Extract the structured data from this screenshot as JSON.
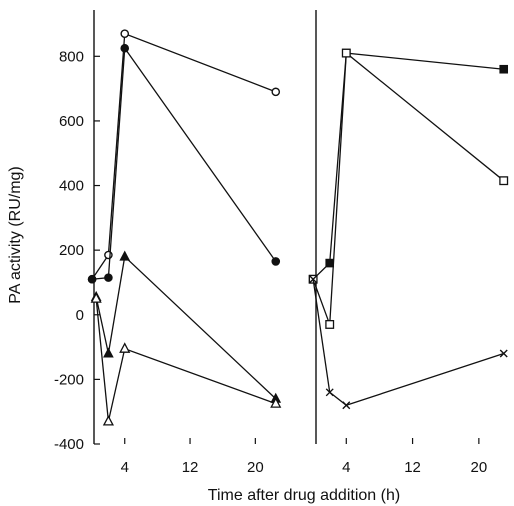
{
  "chart_data": [
    {
      "type": "line",
      "panel": "left",
      "xlabel": "Time after drug addition (h)",
      "ylabel": "PA activity (RU/mg)",
      "xlim": [
        -0.5,
        24
      ],
      "ylim": [
        -400,
        900
      ],
      "xticks": [
        4,
        12,
        20
      ],
      "yticks": [
        -400,
        -200,
        0,
        200,
        400,
        600,
        800
      ],
      "ytick_labels": [
        "-400",
        "-200",
        "0",
        "200",
        "400",
        "600",
        "800"
      ],
      "series": [
        {
          "marker": "open-circle",
          "x": [
            0,
            2,
            4,
            22.5
          ],
          "y": [
            110,
            185,
            870,
            690
          ]
        },
        {
          "marker": "filled-circle",
          "x": [
            0,
            2,
            4,
            22.5
          ],
          "y": [
            110,
            115,
            825,
            165
          ]
        },
        {
          "marker": "filled-triangle",
          "x": [
            0.5,
            2,
            4,
            22.5
          ],
          "y": [
            55,
            -120,
            180,
            -260
          ]
        },
        {
          "marker": "open-triangle",
          "x": [
            0.5,
            2,
            4,
            22.5
          ],
          "y": [
            50,
            -330,
            -105,
            -275
          ]
        }
      ]
    },
    {
      "type": "line",
      "panel": "right",
      "xlabel": "Time after drug addition (h)",
      "xlim": [
        -0.5,
        24
      ],
      "ylim": [
        -400,
        900
      ],
      "xticks": [
        4,
        12,
        20
      ],
      "series": [
        {
          "marker": "filled-square",
          "x": [
            0,
            2,
            4,
            23
          ],
          "y": [
            110,
            160,
            810,
            760
          ]
        },
        {
          "marker": "open-square",
          "x": [
            0,
            2,
            4,
            23
          ],
          "y": [
            110,
            -30,
            810,
            415
          ]
        },
        {
          "marker": "cross",
          "x": [
            0,
            2,
            4,
            23
          ],
          "y": [
            110,
            -240,
            -280,
            -120
          ]
        }
      ]
    }
  ]
}
